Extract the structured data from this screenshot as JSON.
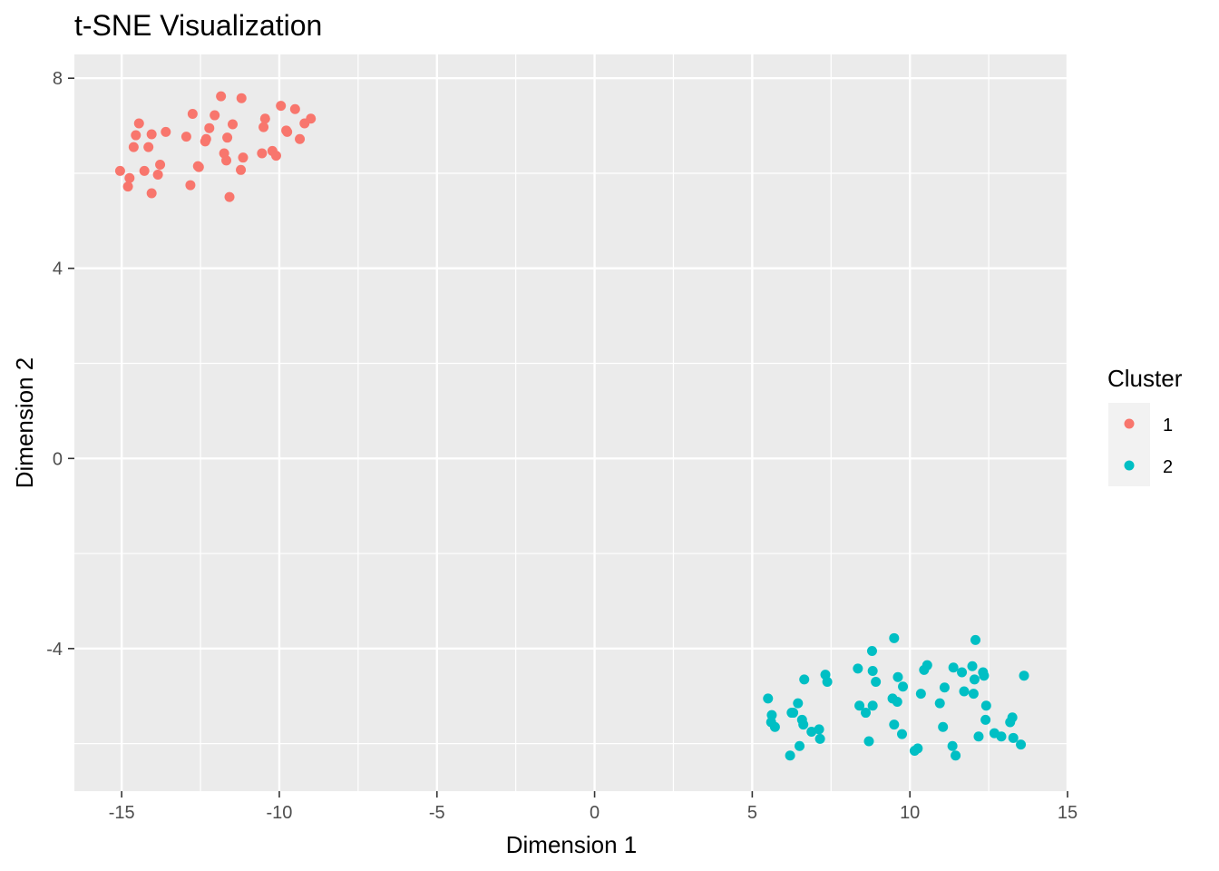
{
  "chart_data": {
    "type": "scatter",
    "title": "t-SNE Visualization",
    "xlabel": "Dimension 1",
    "ylabel": "Dimension 2",
    "xlim": [
      -16.5,
      15
    ],
    "ylim": [
      -7,
      8.5
    ],
    "x_ticks": [
      -15,
      -10,
      -5,
      0,
      5,
      10,
      15
    ],
    "x_tick_labels": [
      "-15",
      "-10",
      "-5",
      "0",
      "5",
      "10",
      "15"
    ],
    "y_ticks": [
      -4,
      0,
      4,
      8
    ],
    "y_tick_labels": [
      "-4",
      "0",
      "4",
      "8"
    ],
    "grid": true,
    "legend": {
      "title": "Cluster",
      "position": "right"
    },
    "series": [
      {
        "name": "1",
        "color": "#F8766D",
        "points": [
          [
            -15.05,
            6.05
          ],
          [
            -14.75,
            5.9
          ],
          [
            -14.8,
            5.72
          ],
          [
            -14.62,
            6.55
          ],
          [
            -14.55,
            6.8
          ],
          [
            -14.45,
            7.05
          ],
          [
            -14.28,
            6.05
          ],
          [
            -14.15,
            6.55
          ],
          [
            -14.05,
            6.82
          ],
          [
            -14.05,
            5.58
          ],
          [
            -13.85,
            5.97
          ],
          [
            -13.78,
            6.18
          ],
          [
            -13.6,
            6.87
          ],
          [
            -12.95,
            6.77
          ],
          [
            -12.82,
            5.75
          ],
          [
            -12.75,
            7.25
          ],
          [
            -12.58,
            6.15
          ],
          [
            -12.55,
            6.13
          ],
          [
            -12.35,
            6.67
          ],
          [
            -12.32,
            6.72
          ],
          [
            -12.22,
            6.95
          ],
          [
            -12.05,
            7.22
          ],
          [
            -11.85,
            7.62
          ],
          [
            -11.75,
            6.42
          ],
          [
            -11.68,
            6.27
          ],
          [
            -11.65,
            6.75
          ],
          [
            -11.58,
            5.5
          ],
          [
            -11.48,
            7.03
          ],
          [
            -11.22,
            6.07
          ],
          [
            -11.2,
            7.58
          ],
          [
            -11.15,
            6.33
          ],
          [
            -10.55,
            6.42
          ],
          [
            -10.5,
            6.97
          ],
          [
            -10.45,
            7.15
          ],
          [
            -10.22,
            6.47
          ],
          [
            -10.1,
            6.37
          ],
          [
            -9.95,
            7.42
          ],
          [
            -9.78,
            6.9
          ],
          [
            -9.75,
            6.87
          ],
          [
            -9.5,
            7.35
          ],
          [
            -9.35,
            6.72
          ],
          [
            -9.2,
            7.05
          ],
          [
            -9.0,
            7.15
          ]
        ]
      },
      {
        "name": "2",
        "color": "#00BFC4",
        "points": [
          [
            5.5,
            -5.05
          ],
          [
            5.6,
            -5.55
          ],
          [
            5.62,
            -5.4
          ],
          [
            5.72,
            -5.65
          ],
          [
            6.2,
            -6.25
          ],
          [
            6.25,
            -5.35
          ],
          [
            6.3,
            -5.35
          ],
          [
            6.45,
            -5.15
          ],
          [
            6.5,
            -6.05
          ],
          [
            6.58,
            -5.5
          ],
          [
            6.62,
            -5.6
          ],
          [
            6.65,
            -4.65
          ],
          [
            6.88,
            -5.75
          ],
          [
            7.12,
            -5.7
          ],
          [
            7.15,
            -5.9
          ],
          [
            7.32,
            -4.55
          ],
          [
            7.38,
            -4.7
          ],
          [
            8.35,
            -4.42
          ],
          [
            8.4,
            -5.2
          ],
          [
            8.6,
            -5.35
          ],
          [
            8.7,
            -5.95
          ],
          [
            8.8,
            -4.05
          ],
          [
            8.82,
            -4.47
          ],
          [
            8.82,
            -5.2
          ],
          [
            8.92,
            -4.7
          ],
          [
            9.45,
            -5.05
          ],
          [
            9.5,
            -5.6
          ],
          [
            9.5,
            -3.78
          ],
          [
            9.6,
            -5.12
          ],
          [
            9.62,
            -4.6
          ],
          [
            9.75,
            -5.8
          ],
          [
            9.78,
            -4.8
          ],
          [
            10.15,
            -6.15
          ],
          [
            10.25,
            -6.1
          ],
          [
            10.35,
            -4.95
          ],
          [
            10.45,
            -4.45
          ],
          [
            10.55,
            -4.35
          ],
          [
            10.95,
            -5.15
          ],
          [
            11.05,
            -5.65
          ],
          [
            11.1,
            -4.82
          ],
          [
            11.35,
            -6.05
          ],
          [
            11.38,
            -4.4
          ],
          [
            11.45,
            -6.25
          ],
          [
            11.65,
            -4.5
          ],
          [
            11.72,
            -4.9
          ],
          [
            11.98,
            -4.37
          ],
          [
            12.02,
            -4.95
          ],
          [
            12.05,
            -4.65
          ],
          [
            12.08,
            -3.82
          ],
          [
            12.18,
            -5.85
          ],
          [
            12.32,
            -4.5
          ],
          [
            12.35,
            -4.57
          ],
          [
            12.4,
            -5.5
          ],
          [
            12.42,
            -5.2
          ],
          [
            12.68,
            -5.78
          ],
          [
            12.9,
            -5.85
          ],
          [
            13.18,
            -5.55
          ],
          [
            13.25,
            -5.45
          ],
          [
            13.28,
            -5.88
          ],
          [
            13.52,
            -6.02
          ],
          [
            13.62,
            -4.57
          ]
        ]
      }
    ]
  }
}
